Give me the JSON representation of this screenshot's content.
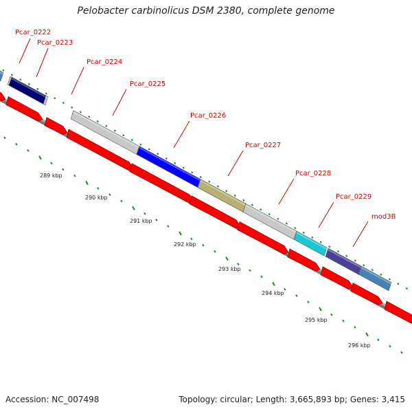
{
  "title": "Pelobacter carbinolicus DSM 2380, complete genome",
  "footer": {
    "accession": "Accession: NC_007498",
    "summary": "Topology: circular; Length: 3,665,893 bp; Genes: 3,415"
  },
  "gene_labels": [
    "Pcar_0222",
    "Pcar_0223",
    "Pcar_0224",
    "Pcar_0225",
    "Pcar_0226",
    "Pcar_0227",
    "Pcar_0228",
    "Pcar_0229",
    "mod3B"
  ],
  "scale_labels": [
    "289 kbp",
    "290 kbp",
    "291 kbp",
    "292 kbp",
    "293 kbp",
    "294 kbp",
    "295 kbp",
    "296 kbp"
  ],
  "colors": {
    "label_red": "#cc0000",
    "cds_red": "#ff0000",
    "tick_green": "#1a8a1a",
    "ring_gray": "#999999",
    "gray_gene": "#c8c8c8",
    "navy_gene": "#00006e",
    "blue_gene": "#0000ff",
    "olive_gene": "#b8b070",
    "cyan_gene": "#19c8d2",
    "purple_gene": "#4b4196",
    "steel_gene": "#4682b4"
  }
}
